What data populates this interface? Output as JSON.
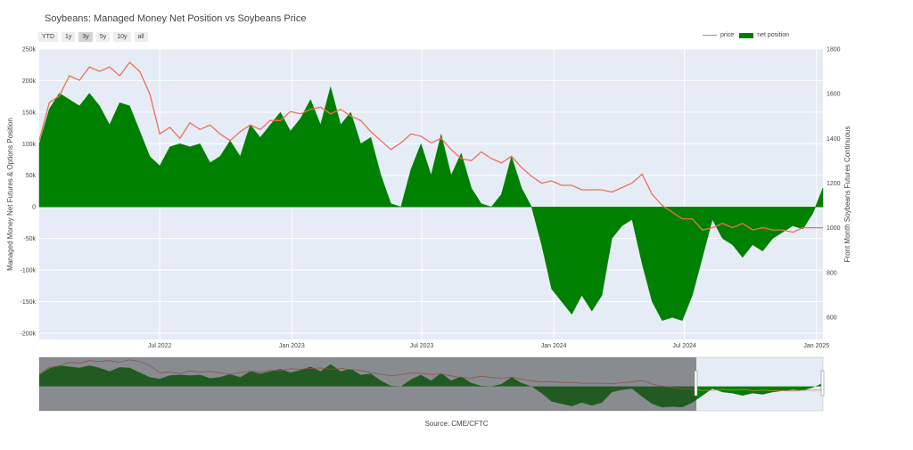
{
  "title": "Soybeans: Managed Money Net Position vs Soybeans Price",
  "range_buttons": [
    {
      "label": "YTD",
      "active": false
    },
    {
      "label": "1y",
      "active": false
    },
    {
      "label": "3y",
      "active": true
    },
    {
      "label": "5y",
      "active": false
    },
    {
      "label": "10y",
      "active": false
    },
    {
      "label": "all",
      "active": false
    }
  ],
  "legend": {
    "price": "price",
    "net_position": "net position"
  },
  "source": "Source: CME/CFTC",
  "colors": {
    "price": "#ef6f58",
    "net_position": "#008000",
    "plot_bg": "#e5ecf6",
    "grid": "#ffffff"
  },
  "chart_data": {
    "type": "line",
    "title": "Soybeans: Managed Money Net Position vs Soybeans Price",
    "xlabel": "",
    "ylabel": "Managed Money Net Futures & Options Position",
    "y2label": "Front Month Soybeans Futures Continuous",
    "x_ticks": [
      "Jul 2022",
      "Jan 2023",
      "Jul 2023",
      "Jan 2024",
      "Jul 2024",
      "Jan 2025"
    ],
    "y_ticks": [
      "250k",
      "200k",
      "150k",
      "100k",
      "50k",
      "0",
      "-50k",
      "-100k",
      "-150k",
      "-200k"
    ],
    "y2_ticks": [
      "1800",
      "1600",
      "1400",
      "1200",
      "1000",
      "800",
      "600"
    ],
    "ylim": [
      -210000,
      250000
    ],
    "y2lim": [
      500,
      1800
    ],
    "xlim": [
      "2022-01-14",
      "2025-01-10"
    ],
    "series": [
      {
        "name": "net position",
        "type": "area",
        "x": [
          "2022-01-14",
          "2022-01-28",
          "2022-02-11",
          "2022-02-25",
          "2022-03-11",
          "2022-03-25",
          "2022-04-08",
          "2022-04-22",
          "2022-05-06",
          "2022-05-20",
          "2022-06-03",
          "2022-06-17",
          "2022-07-01",
          "2022-07-15",
          "2022-07-29",
          "2022-08-12",
          "2022-08-26",
          "2022-09-09",
          "2022-09-23",
          "2022-10-07",
          "2022-10-21",
          "2022-11-04",
          "2022-11-18",
          "2022-12-02",
          "2022-12-16",
          "2022-12-30",
          "2023-01-13",
          "2023-01-27",
          "2023-02-10",
          "2023-02-24",
          "2023-03-10",
          "2023-03-24",
          "2023-04-07",
          "2023-04-21",
          "2023-05-05",
          "2023-05-19",
          "2023-06-02",
          "2023-06-16",
          "2023-06-30",
          "2023-07-14",
          "2023-07-28",
          "2023-08-11",
          "2023-08-25",
          "2023-09-08",
          "2023-09-22",
          "2023-10-06",
          "2023-10-20",
          "2023-11-03",
          "2023-11-17",
          "2023-12-01",
          "2023-12-15",
          "2023-12-29",
          "2024-01-12",
          "2024-01-26",
          "2024-02-09",
          "2024-02-23",
          "2024-03-08",
          "2024-03-22",
          "2024-04-05",
          "2024-04-19",
          "2024-05-03",
          "2024-05-17",
          "2024-05-31",
          "2024-06-14",
          "2024-06-28",
          "2024-07-12",
          "2024-07-26",
          "2024-08-09",
          "2024-08-23",
          "2024-09-06",
          "2024-09-20",
          "2024-10-04",
          "2024-10-18",
          "2024-11-01",
          "2024-11-15",
          "2024-11-29",
          "2024-12-13",
          "2024-12-27",
          "2025-01-10"
        ],
        "values": [
          100000,
          155000,
          180000,
          170000,
          160000,
          180000,
          160000,
          130000,
          165000,
          160000,
          120000,
          80000,
          65000,
          95000,
          100000,
          95000,
          100000,
          70000,
          80000,
          105000,
          80000,
          130000,
          110000,
          130000,
          150000,
          120000,
          140000,
          170000,
          130000,
          190000,
          130000,
          150000,
          100000,
          110000,
          50000,
          5000,
          0,
          60000,
          100000,
          50000,
          115000,
          50000,
          85000,
          30000,
          5000,
          0,
          20000,
          80000,
          30000,
          0,
          -60000,
          -130000,
          -150000,
          -170000,
          -140000,
          -165000,
          -140000,
          -50000,
          -30000,
          -20000,
          -90000,
          -150000,
          -180000,
          -175000,
          -180000,
          -140000,
          -80000,
          -20000,
          -50000,
          -60000,
          -80000,
          -60000,
          -70000,
          -50000,
          -40000,
          -30000,
          -35000,
          -10000,
          30000
        ]
      },
      {
        "name": "price",
        "type": "line",
        "x": [
          "2022-01-14",
          "2022-01-28",
          "2022-02-11",
          "2022-02-25",
          "2022-03-11",
          "2022-03-25",
          "2022-04-08",
          "2022-04-22",
          "2022-05-06",
          "2022-05-20",
          "2022-06-03",
          "2022-06-17",
          "2022-07-01",
          "2022-07-15",
          "2022-07-29",
          "2022-08-12",
          "2022-08-26",
          "2022-09-09",
          "2022-09-23",
          "2022-10-07",
          "2022-10-21",
          "2022-11-04",
          "2022-11-18",
          "2022-12-02",
          "2022-12-16",
          "2022-12-30",
          "2023-01-13",
          "2023-01-27",
          "2023-02-10",
          "2023-02-24",
          "2023-03-10",
          "2023-03-24",
          "2023-04-07",
          "2023-04-21",
          "2023-05-05",
          "2023-05-19",
          "2023-06-02",
          "2023-06-16",
          "2023-06-30",
          "2023-07-14",
          "2023-07-28",
          "2023-08-11",
          "2023-08-25",
          "2023-09-08",
          "2023-09-22",
          "2023-10-06",
          "2023-10-20",
          "2023-11-03",
          "2023-11-17",
          "2023-12-01",
          "2023-12-15",
          "2023-12-29",
          "2024-01-12",
          "2024-01-26",
          "2024-02-09",
          "2024-02-23",
          "2024-03-08",
          "2024-03-22",
          "2024-04-05",
          "2024-04-19",
          "2024-05-03",
          "2024-05-17",
          "2024-05-31",
          "2024-06-14",
          "2024-06-28",
          "2024-07-12",
          "2024-07-26",
          "2024-08-09",
          "2024-08-23",
          "2024-09-06",
          "2024-09-20",
          "2024-10-04",
          "2024-10-18",
          "2024-11-01",
          "2024-11-15",
          "2024-11-29",
          "2024-12-13",
          "2024-12-27",
          "2025-01-10"
        ],
        "values": [
          1390,
          1560,
          1590,
          1680,
          1660,
          1720,
          1700,
          1720,
          1680,
          1740,
          1700,
          1600,
          1420,
          1450,
          1400,
          1470,
          1440,
          1460,
          1420,
          1390,
          1430,
          1460,
          1440,
          1480,
          1480,
          1520,
          1510,
          1530,
          1540,
          1510,
          1530,
          1500,
          1480,
          1430,
          1390,
          1350,
          1380,
          1420,
          1410,
          1380,
          1400,
          1350,
          1310,
          1300,
          1340,
          1310,
          1290,
          1320,
          1270,
          1230,
          1200,
          1210,
          1190,
          1190,
          1170,
          1170,
          1170,
          1160,
          1180,
          1200,
          1240,
          1150,
          1100,
          1070,
          1040,
          1040,
          990,
          1000,
          1020,
          1000,
          1020,
          990,
          1000,
          990,
          990,
          980,
          1000,
          1000,
          1000
        ]
      }
    ]
  }
}
